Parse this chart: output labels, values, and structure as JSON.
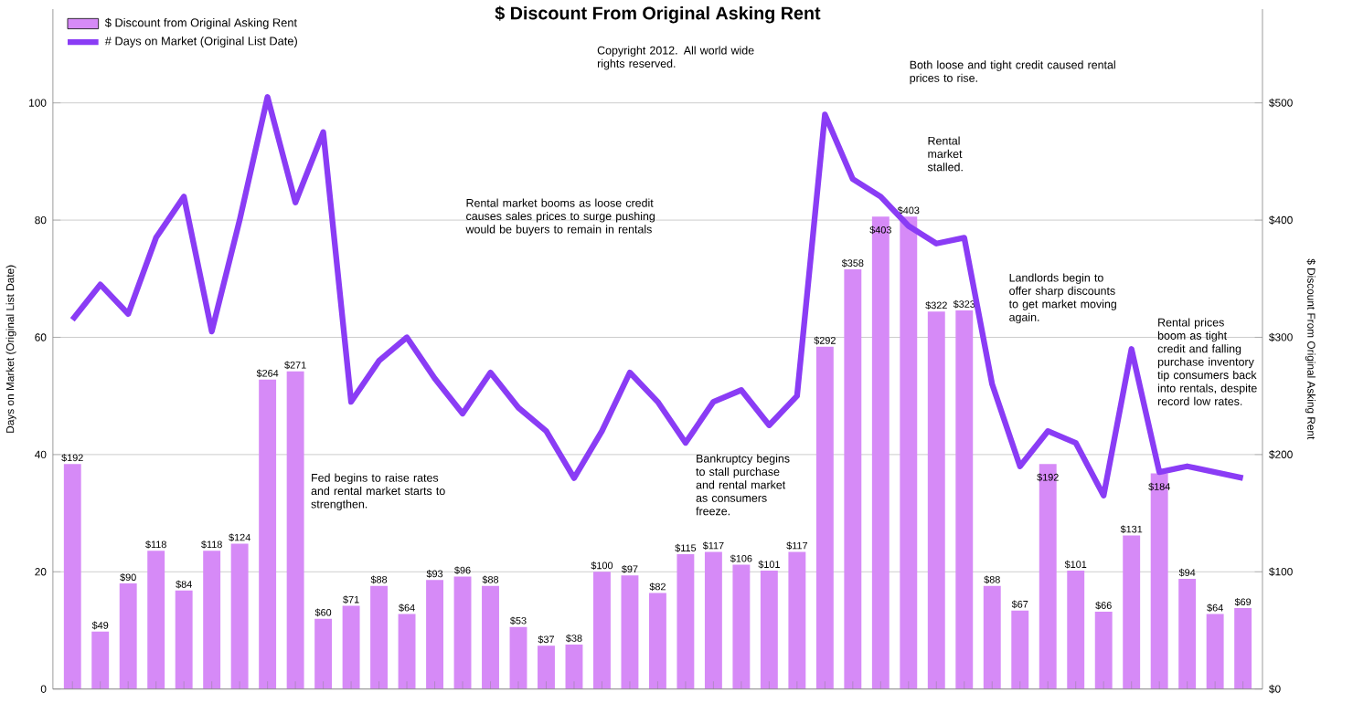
{
  "chart_data": {
    "type": "bar",
    "title": "$ Discount From Original Asking Rent",
    "ylabel": "Days on Market (Original List Date)",
    "y2label": "$ Discount From Original Asking Rent",
    "categories": [
      null,
      null,
      null,
      null,
      null,
      null,
      null,
      null,
      null,
      null,
      null,
      null,
      null,
      null,
      null,
      null,
      null,
      null,
      null,
      null,
      null,
      null,
      null,
      null,
      null,
      null,
      null,
      null,
      null,
      null,
      null,
      null,
      null,
      null,
      null,
      null,
      null,
      null,
      null,
      null,
      null,
      null,
      null
    ],
    "series": [
      {
        "name": "$ Discount from Original Asking Rent",
        "axis": "y2",
        "color": "#d68af7",
        "values": [
          192,
          49,
          90,
          118,
          84,
          118,
          124,
          264,
          271,
          60,
          71,
          88,
          64,
          93,
          96,
          88,
          53,
          37,
          38,
          100,
          97,
          82,
          115,
          117,
          106,
          101,
          117,
          292,
          358,
          403,
          403,
          322,
          323,
          88,
          67,
          192,
          101,
          66,
          131,
          184,
          94,
          64,
          69
        ],
        "value_labels": [
          "$192",
          "$49",
          "$90",
          "$118",
          "$84",
          "$118",
          "$124",
          "$264",
          "$271",
          "$60",
          "$71",
          "$88",
          "$64",
          "$93",
          "$96",
          "$88",
          "$53",
          "$37",
          "$38",
          "$100",
          "$97",
          "$82",
          "$115",
          "$117",
          "$106",
          "$101",
          "$117",
          "$292",
          "$358",
          "$403",
          "$403",
          "$322",
          "$323",
          "$88",
          "$67",
          "$192",
          "$101",
          "$66",
          "$131",
          "$184",
          "$94",
          "$64",
          "$69"
        ]
      },
      {
        "name": "# Days on Market (Original List Date)",
        "type": "line",
        "axis": "y",
        "color": "#8a3cf5",
        "values": [
          63,
          69,
          64,
          77,
          84,
          61,
          80,
          101,
          83,
          95,
          49,
          56,
          60,
          53,
          47,
          54,
          48,
          44,
          36,
          44,
          54,
          49,
          42,
          49,
          51,
          45,
          50,
          98,
          87,
          84,
          79,
          76,
          77,
          52,
          38,
          44,
          42,
          33,
          58,
          37,
          38,
          37,
          36
        ]
      }
    ],
    "ylim": [
      0,
      116
    ],
    "yticks": [
      0,
      20,
      40,
      60,
      80,
      100
    ],
    "y2lim": [
      0,
      580
    ],
    "y2ticks": [
      {
        "value": 0,
        "label": "$0"
      },
      {
        "value": 100,
        "label": "$100"
      },
      {
        "value": 200,
        "label": "$200"
      },
      {
        "value": 300,
        "label": "$300"
      },
      {
        "value": 400,
        "label": "$400"
      },
      {
        "value": 500,
        "label": "$500"
      }
    ],
    "grid": "y",
    "legend": "top left",
    "annotations": [
      "Both loose and tight credit caused rental prices to rise.",
      "Rental market stalled.",
      "Fed begins to raise rates and rental market starts to strengthen.",
      "Rental market booms as loose credit causes sales prices to surge pushing would be buyers to remain in rentals",
      "Bankruptcy begins to stall purchase and rental market as consumers freeze.",
      "Landlords begin to offer sharp discounts to get market moving again.",
      "Rental prices boom as tight credit and falling purchase inventory tip consumers back into rentals, despite record low rates.",
      "Copyright 2012. All world wide rights reserved."
    ]
  }
}
